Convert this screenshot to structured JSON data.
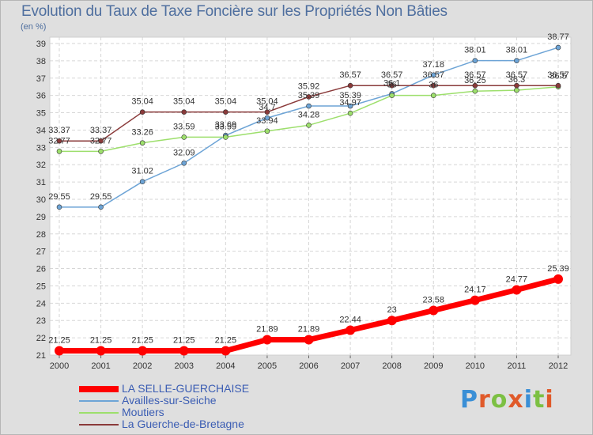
{
  "title": "Evolution du Taux de Taxe Foncière sur les Propriétés Non Bâties",
  "unit": "(en %)",
  "brand": {
    "letters": [
      "P",
      "r",
      "o",
      "x",
      "i",
      "t",
      "i"
    ],
    "colors": [
      "#3a8fd6",
      "#e05a2a",
      "#7cc043",
      "#e05a2a",
      "#3a8fd6",
      "#7cc043",
      "#e05a2a"
    ]
  },
  "chart_data": {
    "type": "line",
    "x": [
      "2000",
      "2001",
      "2002",
      "2003",
      "2004",
      "2005",
      "2006",
      "2007",
      "2008",
      "2009",
      "2010",
      "2011",
      "2012"
    ],
    "ylim": [
      21,
      39
    ],
    "yticks": [
      21,
      22,
      23,
      24,
      25,
      26,
      27,
      28,
      29,
      30,
      31,
      32,
      33,
      34,
      35,
      36,
      37,
      38,
      39
    ],
    "grid": true,
    "legend_position": "bottom-left",
    "series": [
      {
        "name": "LA SELLE-GUERCHAISE",
        "color": "#ff0000",
        "values": [
          21.25,
          21.25,
          21.25,
          21.25,
          21.25,
          21.89,
          21.89,
          22.44,
          23,
          23.58,
          24.17,
          24.77,
          25.39
        ],
        "labels": [
          "21.25",
          "21.25",
          "21.25",
          "21.25",
          "21.25",
          "21.89",
          "21.89",
          "22.44",
          "23",
          "23.58",
          "24.17",
          "24.77",
          "25.39"
        ]
      },
      {
        "name": "Availles-sur-Seiche",
        "color": "#6da4d6",
        "values": [
          29.55,
          29.55,
          31.02,
          32.09,
          33.69,
          34.7,
          35.39,
          35.39,
          36.1,
          37.18,
          38.01,
          38.01,
          38.77
        ],
        "labels": [
          "29.55",
          "29.55",
          "31.02",
          "32.09",
          "33.69",
          "34.7",
          "35.39",
          "35.39",
          "36.1",
          "37.18",
          "38.01",
          "38.01",
          "38.77"
        ]
      },
      {
        "name": "Moutiers",
        "color": "#9ddf6c",
        "values": [
          32.77,
          32.77,
          33.26,
          33.59,
          33.59,
          33.94,
          34.28,
          34.97,
          36,
          36,
          36.25,
          36.3,
          36.5
        ],
        "labels": [
          "32.77",
          "32.77",
          "33.26",
          "33.59",
          "33.59",
          "33.94",
          "34.28",
          "34.97",
          "36",
          "36",
          "36.25",
          "36.3",
          "36.5"
        ]
      },
      {
        "name": "La Guerche-de-Bretagne",
        "color": "#8a3a3a",
        "values": [
          33.37,
          33.37,
          35.04,
          35.04,
          35.04,
          35.04,
          35.92,
          36.57,
          36.57,
          36.57,
          36.57,
          36.57,
          36.57
        ],
        "labels": [
          "33.37",
          "33.37",
          "35.04",
          "35.04",
          "35.04",
          "35.04",
          "35.92",
          "36.57",
          "36.57",
          "36.57",
          "36.57",
          "36.57",
          "36.57"
        ]
      }
    ]
  }
}
